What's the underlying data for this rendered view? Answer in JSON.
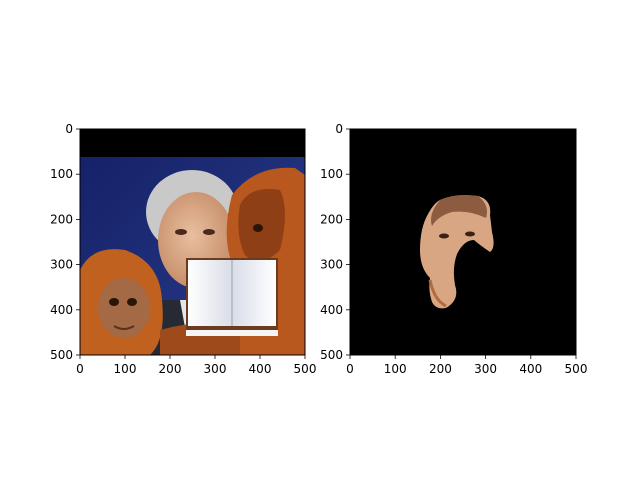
{
  "figure": {
    "background": "#ffffff",
    "panels": [
      {
        "name": "original-image",
        "extent": [
          0,
          500,
          500,
          0
        ],
        "xticks": [
          "0",
          "100",
          "200",
          "300",
          "400",
          "500"
        ],
        "yticks": [
          "0",
          "100",
          "200",
          "300",
          "400",
          "500"
        ],
        "content": "photo of a man with two orangutans, a book graphic pasted over the lower right"
      },
      {
        "name": "masked-image",
        "extent": [
          0,
          500,
          500,
          0
        ],
        "xticks": [
          "0",
          "100",
          "200",
          "300",
          "400",
          "500"
        ],
        "yticks": [
          "0",
          "100",
          "200",
          "300",
          "400",
          "500"
        ],
        "content": "face segment on black background"
      }
    ],
    "colors": {
      "mask_background": "#000000",
      "studio_blue": "#1c2a6e",
      "orangutan": "#b8581f",
      "skin": "#d9a683"
    }
  }
}
